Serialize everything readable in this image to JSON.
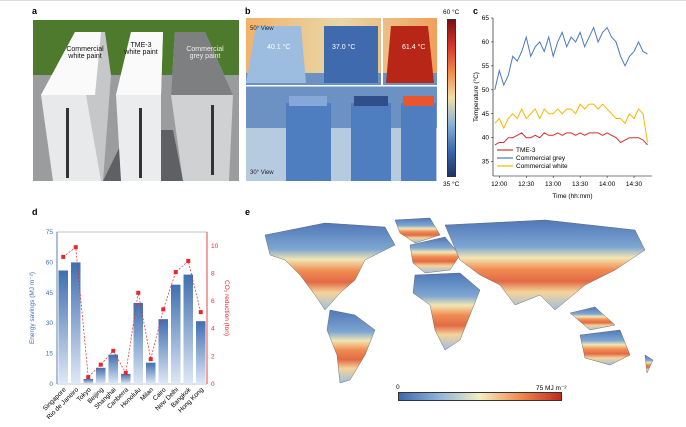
{
  "panels": {
    "a": "a",
    "b": "b",
    "c": "c",
    "d": "d",
    "e": "e"
  },
  "photo": {
    "labels": [
      "Commercial\nwhite paint",
      "TME-3\nwhite paint",
      "Commercial\ngrey paint"
    ]
  },
  "thermal": {
    "view_top": "50° View",
    "view_bottom": "30° View",
    "temps": [
      "40.1 °C",
      "37.0 °C",
      "61.4 °C"
    ],
    "colorbar_max": "60 °C",
    "colorbar_min": "35 °C"
  },
  "colors": {
    "grey": "#4a78c2",
    "white": "#f5b800",
    "tme3": "#d62f2f",
    "bar": "#3f6fb0",
    "co2": "#e8262b"
  },
  "chart_data": [
    {
      "type": "line",
      "xlabel": "Time (hh:mm)",
      "ylabel": "Temperature (°C)",
      "ylim": [
        32,
        65
      ],
      "yticks": [
        35,
        40,
        45,
        50,
        55,
        60,
        65
      ],
      "xticks": [
        "12:00",
        "12:30",
        "13:00",
        "13:30",
        "14:00",
        "14:30"
      ],
      "x": [
        "11:55",
        "12:00",
        "12:05",
        "12:10",
        "12:15",
        "12:20",
        "12:25",
        "12:30",
        "12:35",
        "12:40",
        "12:45",
        "12:50",
        "12:55",
        "13:00",
        "13:05",
        "13:10",
        "13:15",
        "13:20",
        "13:25",
        "13:30",
        "13:35",
        "13:40",
        "13:45",
        "13:50",
        "13:55",
        "14:00",
        "14:05",
        "14:10",
        "14:15",
        "14:20",
        "14:25",
        "14:30",
        "14:35",
        "14:40",
        "14:45"
      ],
      "series": [
        {
          "name": "TME-3",
          "values": [
            38.5,
            39,
            39,
            40,
            40,
            40.5,
            41,
            40,
            40,
            40.5,
            40,
            41,
            40.5,
            40.5,
            41,
            40.5,
            41,
            41,
            40.5,
            41,
            40.5,
            41,
            41,
            41,
            40.5,
            41,
            40.5,
            40,
            39,
            39.5,
            40,
            40,
            40,
            39.5,
            38.5
          ]
        },
        {
          "name": "Commercial grey",
          "values": [
            50,
            54,
            51,
            53,
            57,
            56,
            58,
            61,
            57,
            59,
            60,
            58,
            61,
            57,
            60,
            62,
            59,
            61,
            60,
            62,
            59,
            61,
            63,
            60,
            62,
            63,
            61,
            60,
            57,
            55,
            57,
            58,
            60,
            58,
            57.5
          ]
        },
        {
          "name": "Commercial white",
          "values": [
            43,
            44,
            42,
            44,
            45,
            44,
            46,
            44,
            45,
            46,
            44,
            46,
            45,
            45,
            46,
            45,
            46,
            46,
            45,
            47,
            46,
            47,
            47,
            46,
            47,
            46,
            45,
            44,
            44,
            43,
            45,
            44,
            46,
            45,
            39
          ]
        }
      ],
      "legend": "bottom-left"
    },
    {
      "type": "bar",
      "categories": [
        "Singapore",
        "Rio de Janeiro",
        "Tokyo",
        "Beijing",
        "Shanghai",
        "Canberra",
        "Honolulu",
        "Milan",
        "Cairo",
        "New Delhi",
        "Bangkok",
        "Hong Kong"
      ],
      "ylabel": "Energy savings (MJ m⁻²)",
      "ylim": [
        0,
        75
      ],
      "yticks": [
        0,
        15,
        30,
        45,
        60,
        75
      ],
      "values": [
        56,
        60,
        2.5,
        8,
        14.5,
        5,
        40,
        10.5,
        32,
        49,
        54,
        31
      ],
      "y2label": "CO₂ reduction (ton)",
      "y2lim": [
        0,
        11
      ],
      "y2ticks": [
        0,
        2,
        4,
        6,
        8,
        10
      ],
      "values2": [
        9.2,
        9.9,
        0.5,
        1.4,
        2.4,
        0.8,
        6.6,
        1.8,
        5.4,
        8.1,
        8.9,
        5.2
      ]
    }
  ],
  "map": {
    "colorbar_min": "0",
    "colorbar_max": "75 MJ m⁻²"
  }
}
